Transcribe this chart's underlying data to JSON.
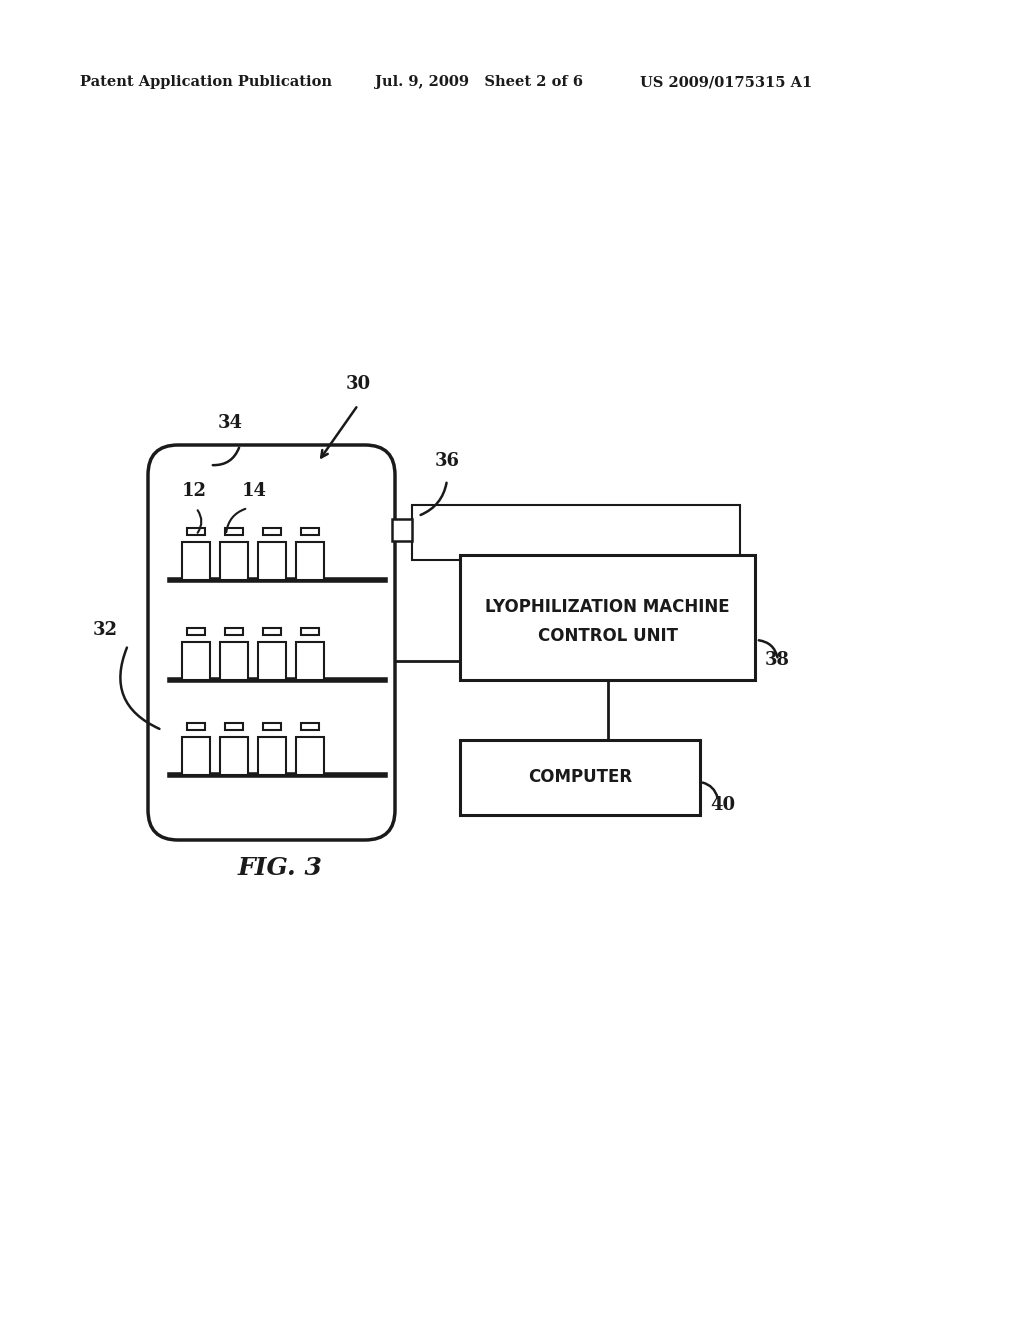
{
  "bg_color": "#ffffff",
  "header_left": "Patent Application Publication",
  "header_mid": "Jul. 9, 2009   Sheet 2 of 6",
  "header_right": "US 2009/0175315 A1",
  "fig_label": "FIG. 3",
  "label_30": "30",
  "label_32": "32",
  "label_34": "34",
  "label_36": "36",
  "label_38": "38",
  "label_40": "40",
  "label_12": "12",
  "label_14": "14",
  "box_lyo_text1": "LYOPHILIZATION MACHINE",
  "box_lyo_text2": "CONTROL UNIT",
  "box_computer_text": "COMPUTER",
  "text_color": "#1a1a1a",
  "line_color": "#1a1a1a"
}
